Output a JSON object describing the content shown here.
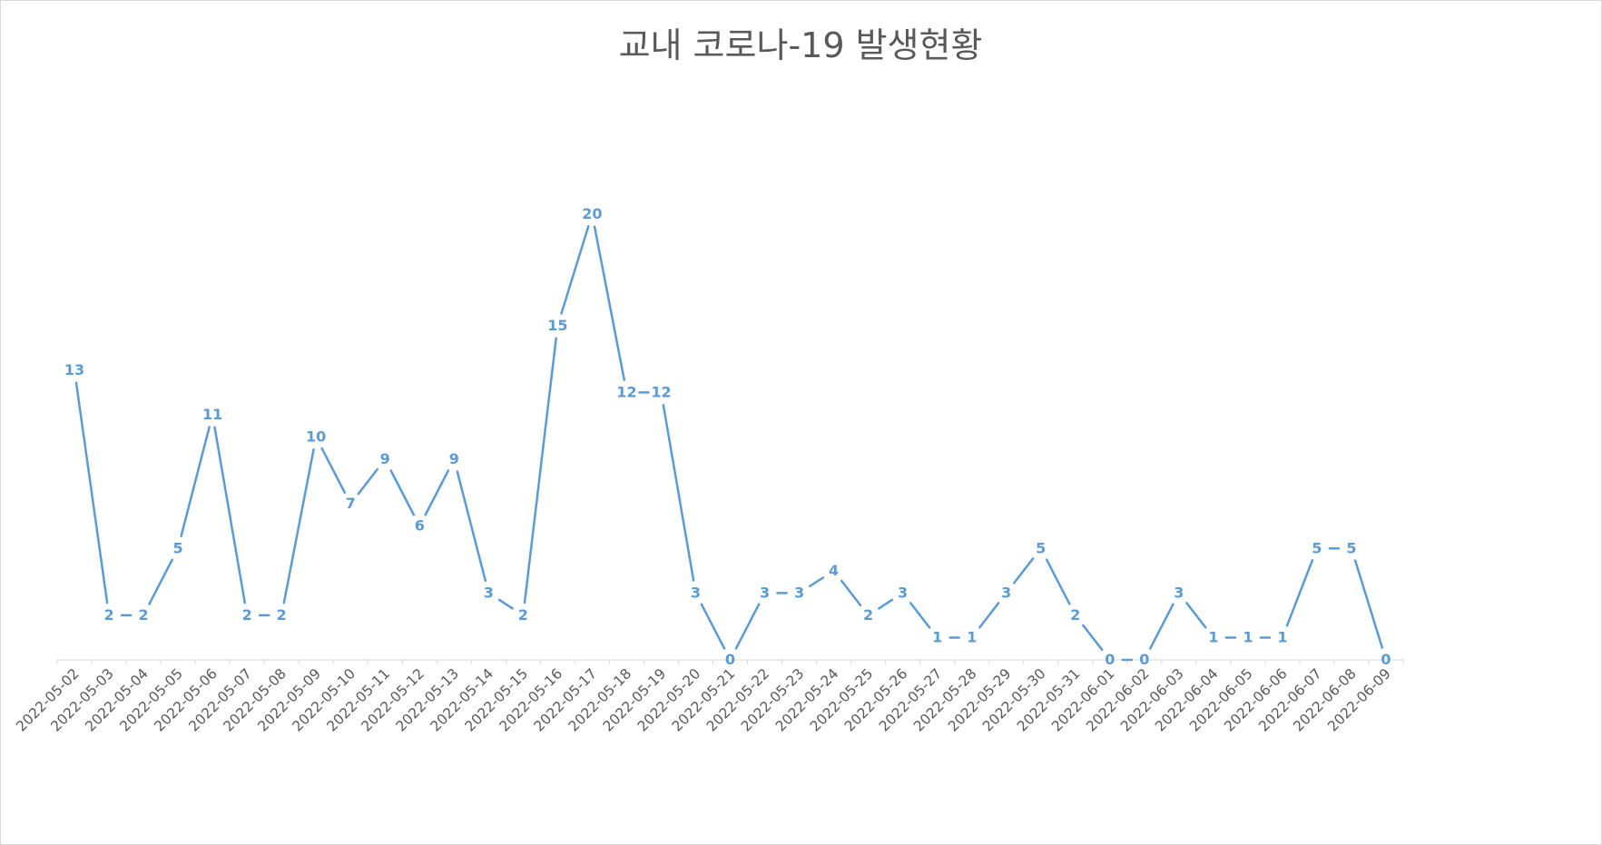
{
  "chart_data": {
    "type": "line",
    "title": "교내 코로나-19 발생현황",
    "xlabel": "",
    "ylabel": "",
    "ylim": [
      0,
      20
    ],
    "grid": false,
    "legend": "none",
    "line_color": "#5b9bd5",
    "categories": [
      "2022-05-02",
      "2022-05-03",
      "2022-05-04",
      "2022-05-05",
      "2022-05-06",
      "2022-05-07",
      "2022-05-08",
      "2022-05-09",
      "2022-05-10",
      "2022-05-11",
      "2022-05-12",
      "2022-05-13",
      "2022-05-14",
      "2022-05-15",
      "2022-05-16",
      "2022-05-17",
      "2022-05-18",
      "2022-05-19",
      "2022-05-20",
      "2022-05-21",
      "2022-05-22",
      "2022-05-23",
      "2022-05-24",
      "2022-05-25",
      "2022-05-26",
      "2022-05-27",
      "2022-05-28",
      "2022-05-29",
      "2022-05-30",
      "2022-05-31",
      "2022-06-01",
      "2022-06-02",
      "2022-06-03",
      "2022-06-04",
      "2022-06-05",
      "2022-06-06",
      "2022-06-07",
      "2022-06-08",
      "2022-06-09"
    ],
    "series": [
      {
        "values": [
          13,
          2,
          2,
          5,
          11,
          2,
          2,
          10,
          7,
          9,
          6,
          9,
          3,
          2,
          15,
          20,
          12,
          12,
          3,
          0,
          3,
          3,
          4,
          2,
          3,
          1,
          1,
          3,
          5,
          2,
          0,
          0,
          3,
          1,
          1,
          1,
          5,
          5,
          0
        ]
      }
    ]
  }
}
